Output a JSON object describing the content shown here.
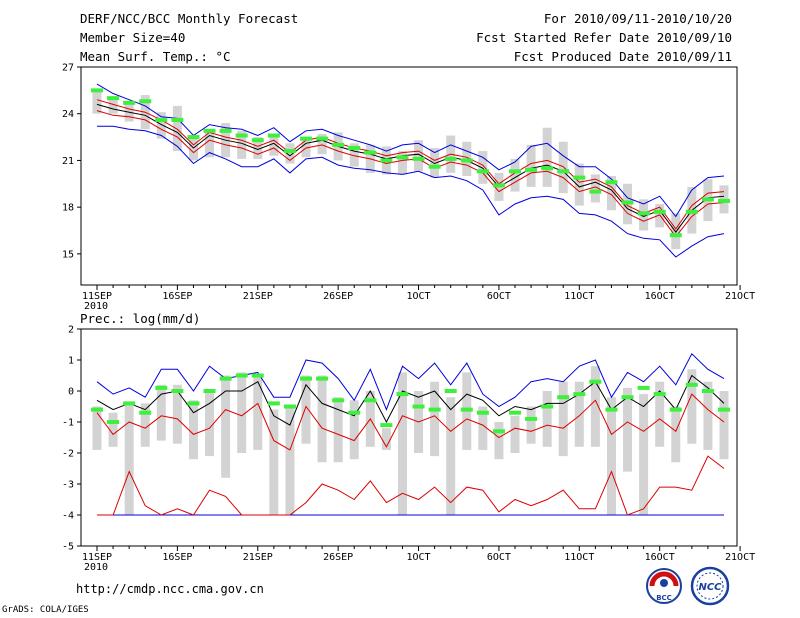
{
  "header": {
    "title": "DERF/NCC/BCC Monthly Forecast",
    "member_size": "Member Size=40",
    "variable": "Mean Surf. Temp.: °C",
    "period": "For 2010/09/11-2010/10/20",
    "started": "Fcst Started Refer Date 2010/09/10",
    "produced": "Fcst Produced Date 2010/09/11"
  },
  "footer": {
    "url": "http://cmdp.ncc.cma.gov.cn",
    "credit": "GrADS: COLA/IGES",
    "logo_left": "BCC",
    "logo_right": "NCC"
  },
  "colors": {
    "box": "#d3d3d3",
    "marker": "#3cf03c",
    "envelope": "#0000dd",
    "spread": "#dd0000",
    "mean": "#000000"
  },
  "chart_data": [
    {
      "type": "line",
      "title": "Mean Surf. Temp.: °C",
      "ylim": [
        13,
        27
      ],
      "yticks": [
        15,
        18,
        21,
        24,
        27
      ],
      "x": [
        "11SEP",
        "12SEP",
        "13SEP",
        "14SEP",
        "15SEP",
        "16SEP",
        "17SEP",
        "18SEP",
        "19SEP",
        "20SEP",
        "21SEP",
        "22SEP",
        "23SEP",
        "24SEP",
        "25SEP",
        "26SEP",
        "27SEP",
        "28SEP",
        "29SEP",
        "30SEP",
        "1OCT",
        "2OCT",
        "3OCT",
        "4OCT",
        "5OCT",
        "6OCT",
        "7OCT",
        "8OCT",
        "9OCT",
        "10OCT",
        "11OCT",
        "12OCT",
        "13OCT",
        "14OCT",
        "15OCT",
        "16OCT",
        "17OCT",
        "18OCT",
        "19OCT",
        "20OCT"
      ],
      "xtick_labels": [
        "11SEP",
        "16SEP",
        "21SEP",
        "26SEP",
        "1OCT",
        "6OCT",
        "11OCT",
        "16OCT",
        "21OCT"
      ],
      "xtick_sublabel": "2010",
      "series": [
        {
          "name": "ensemble max",
          "color": "blue",
          "values": [
            25.9,
            25.3,
            24.9,
            24.5,
            23.8,
            23.7,
            22.6,
            23.3,
            23.1,
            23.0,
            22.6,
            23.1,
            22.2,
            22.9,
            23.0,
            22.6,
            22.3,
            22.0,
            21.6,
            22.0,
            22.1,
            21.5,
            22.0,
            21.6,
            21.2,
            20.4,
            20.9,
            21.9,
            22.1,
            21.3,
            20.6,
            20.6,
            19.8,
            18.6,
            18.2,
            18.7,
            17.4,
            19.1,
            19.9,
            20.0
          ]
        },
        {
          "name": "upper spread",
          "color": "red",
          "values": [
            24.9,
            24.6,
            24.3,
            24.1,
            23.6,
            23.0,
            22.0,
            22.8,
            22.5,
            22.3,
            21.9,
            22.3,
            21.5,
            22.3,
            22.5,
            22.1,
            21.8,
            21.6,
            21.3,
            21.5,
            21.6,
            21.0,
            21.4,
            21.2,
            20.7,
            19.5,
            20.2,
            20.8,
            21.0,
            20.6,
            19.6,
            19.8,
            19.3,
            18.1,
            17.6,
            18.0,
            16.6,
            18.1,
            18.9,
            19.0
          ]
        },
        {
          "name": "ensemble mean",
          "color": "black",
          "values": [
            24.6,
            24.3,
            24.1,
            23.9,
            23.3,
            22.8,
            21.8,
            22.6,
            22.3,
            22.1,
            21.7,
            22.1,
            21.3,
            22.1,
            22.3,
            21.9,
            21.6,
            21.4,
            21.1,
            21.3,
            21.4,
            20.8,
            21.2,
            21.0,
            20.5,
            19.3,
            19.9,
            20.5,
            20.7,
            20.3,
            19.3,
            19.6,
            19.1,
            17.9,
            17.4,
            17.8,
            16.4,
            17.8,
            18.6,
            18.7
          ]
        },
        {
          "name": "lower spread",
          "color": "red",
          "values": [
            24.2,
            23.9,
            23.8,
            23.6,
            23.0,
            22.5,
            21.5,
            22.3,
            22.0,
            21.8,
            21.4,
            21.8,
            21.0,
            21.8,
            22.0,
            21.6,
            21.3,
            21.1,
            20.8,
            21.0,
            21.1,
            20.5,
            20.9,
            20.7,
            20.2,
            19.0,
            19.6,
            20.2,
            20.3,
            19.9,
            19.0,
            19.3,
            18.8,
            17.6,
            17.1,
            17.5,
            16.1,
            17.4,
            18.2,
            18.3
          ]
        },
        {
          "name": "ensemble min",
          "color": "blue",
          "values": [
            23.2,
            23.2,
            23.0,
            22.9,
            22.6,
            21.9,
            20.8,
            21.5,
            21.1,
            20.6,
            20.6,
            21.1,
            20.2,
            21.1,
            21.2,
            20.7,
            20.5,
            20.4,
            20.2,
            20.1,
            20.3,
            19.9,
            20.0,
            19.7,
            19.1,
            17.5,
            18.2,
            18.6,
            18.7,
            18.5,
            17.6,
            17.5,
            17.1,
            16.3,
            16.0,
            15.9,
            14.8,
            15.5,
            16.1,
            16.3
          ]
        },
        {
          "name": "box top",
          "color": "gray",
          "values": [
            25.6,
            25.0,
            24.6,
            25.2,
            24.1,
            24.5,
            22.6,
            23.0,
            23.4,
            22.9,
            22.5,
            22.7,
            22.1,
            22.4,
            22.7,
            22.8,
            22.1,
            22.0,
            21.9,
            21.6,
            22.3,
            21.8,
            22.6,
            22.2,
            21.6,
            20.2,
            21.1,
            22.0,
            23.1,
            22.2,
            20.8,
            20.1,
            20.0,
            19.5,
            18.5,
            18.2,
            17.6,
            19.3,
            19.8,
            19.4
          ]
        },
        {
          "name": "box bottom",
          "color": "gray",
          "values": [
            24.0,
            24.0,
            23.5,
            23.0,
            22.4,
            21.6,
            21.0,
            21.2,
            21.2,
            21.1,
            21.1,
            21.3,
            20.8,
            21.2,
            21.4,
            21.0,
            20.6,
            20.2,
            20.1,
            20.1,
            20.3,
            19.9,
            20.2,
            20.0,
            19.5,
            18.4,
            19.0,
            19.3,
            19.3,
            18.9,
            18.1,
            18.3,
            17.8,
            16.9,
            16.5,
            16.7,
            15.3,
            16.3,
            17.1,
            17.6
          ]
        },
        {
          "name": "green marker",
          "color": "green",
          "values": [
            25.5,
            25.0,
            24.7,
            24.8,
            23.6,
            23.6,
            22.5,
            22.9,
            22.9,
            22.6,
            22.3,
            22.6,
            21.6,
            22.4,
            22.4,
            22.0,
            21.8,
            21.5,
            21.0,
            21.2,
            21.1,
            20.6,
            21.1,
            21.0,
            20.3,
            19.4,
            20.3,
            20.4,
            20.5,
            20.3,
            19.9,
            19.0,
            19.6,
            18.3,
            17.6,
            17.7,
            16.2,
            17.7,
            18.5,
            18.4
          ]
        }
      ]
    },
    {
      "type": "line",
      "title": "Prec.: log(mm/d)",
      "ylim": [
        -5,
        2
      ],
      "yticks": [
        -5,
        -4,
        -3,
        -2,
        -1,
        0,
        1,
        2
      ],
      "x": [
        "11SEP",
        "12SEP",
        "13SEP",
        "14SEP",
        "15SEP",
        "16SEP",
        "17SEP",
        "18SEP",
        "19SEP",
        "20SEP",
        "21SEP",
        "22SEP",
        "23SEP",
        "24SEP",
        "25SEP",
        "26SEP",
        "27SEP",
        "28SEP",
        "29SEP",
        "30SEP",
        "1OCT",
        "2OCT",
        "3OCT",
        "4OCT",
        "5OCT",
        "6OCT",
        "7OCT",
        "8OCT",
        "9OCT",
        "10OCT",
        "11OCT",
        "12OCT",
        "13OCT",
        "14OCT",
        "15OCT",
        "16OCT",
        "17OCT",
        "18OCT",
        "19OCT",
        "20OCT"
      ],
      "xtick_labels": [
        "11SEP",
        "16SEP",
        "21SEP",
        "26SEP",
        "1OCT",
        "6OCT",
        "11OCT",
        "16OCT",
        "21OCT"
      ],
      "xtick_sublabel": "2010",
      "series": [
        {
          "name": "ensemble max",
          "color": "blue",
          "values": [
            0.3,
            -0.1,
            0.1,
            -0.2,
            0.7,
            0.7,
            0.0,
            0.8,
            0.4,
            0.5,
            0.6,
            -0.2,
            -0.2,
            1.0,
            0.9,
            0.4,
            -0.3,
            0.7,
            -0.6,
            0.8,
            0.4,
            0.9,
            0.2,
            0.9,
            -0.1,
            -0.5,
            -0.2,
            0.3,
            0.4,
            0.3,
            0.8,
            1.0,
            -0.2,
            0.6,
            0.3,
            0.8,
            0.2,
            1.2,
            0.7,
            0.4
          ]
        },
        {
          "name": "upper spread",
          "color": "red",
          "values": [
            -0.7,
            -1.4,
            -1.0,
            -1.2,
            -0.8,
            -0.9,
            -1.4,
            -1.2,
            -0.6,
            -0.8,
            -0.4,
            -1.6,
            -1.9,
            -0.5,
            -1.2,
            -1.4,
            -1.6,
            -0.9,
            -1.8,
            -0.8,
            -1.0,
            -0.8,
            -1.3,
            -0.9,
            -1.1,
            -1.5,
            -1.2,
            -1.3,
            -1.1,
            -1.2,
            -0.8,
            -0.3,
            -1.4,
            -1.0,
            -1.3,
            -0.9,
            -1.3,
            -0.1,
            -0.6,
            -1.0
          ]
        },
        {
          "name": "ensemble mean",
          "color": "black",
          "values": [
            -0.3,
            -0.6,
            -0.4,
            -0.6,
            -0.1,
            0.0,
            -0.7,
            -0.4,
            0.0,
            0.0,
            0.3,
            -0.8,
            -1.1,
            0.2,
            -0.4,
            -0.6,
            -0.8,
            0.0,
            -1.0,
            0.0,
            -0.2,
            0.0,
            -0.6,
            -0.1,
            -0.3,
            -0.8,
            -0.5,
            -0.6,
            -0.4,
            -0.4,
            -0.1,
            0.3,
            -0.6,
            -0.2,
            -0.5,
            0.0,
            -0.6,
            0.5,
            0.1,
            -0.4
          ]
        },
        {
          "name": "lower spread",
          "color": "red",
          "values": [
            -4.0,
            -4.0,
            -2.6,
            -3.7,
            -4.0,
            -3.8,
            -4.0,
            -3.2,
            -3.4,
            -4.0,
            -4.0,
            -4.0,
            -4.0,
            -3.6,
            -3.0,
            -3.2,
            -3.5,
            -2.9,
            -3.6,
            -3.3,
            -3.5,
            -3.1,
            -3.6,
            -3.1,
            -3.2,
            -3.9,
            -3.5,
            -3.7,
            -3.5,
            -3.2,
            -3.8,
            -3.8,
            -2.6,
            -4.0,
            -3.8,
            -3.1,
            -3.1,
            -3.2,
            -2.1,
            -2.5
          ]
        },
        {
          "name": "ensemble min",
          "color": "blue",
          "values": [
            -4.0,
            -4.0,
            -4.0,
            -4.0,
            -4.0,
            -4.0,
            -4.0,
            -4.0,
            -4.0,
            -4.0,
            -4.0,
            -4.0,
            -4.0,
            -4.0,
            -4.0,
            -4.0,
            -4.0,
            -4.0,
            -4.0,
            -4.0,
            -4.0,
            -4.0,
            -4.0,
            -4.0,
            -4.0,
            -4.0,
            -4.0,
            -4.0,
            -4.0,
            -4.0,
            -4.0,
            -4.0,
            -4.0,
            -4.0,
            -4.0,
            -4.0,
            -4.0,
            -4.0,
            -4.0,
            -4.0
          ]
        },
        {
          "name": "box top",
          "color": "gray",
          "values": [
            -0.5,
            -0.7,
            -0.4,
            -0.4,
            0.2,
            0.2,
            -0.3,
            0.0,
            0.5,
            0.6,
            0.5,
            -0.6,
            -0.5,
            0.5,
            0.5,
            -0.2,
            -0.3,
            0.0,
            -1.2,
            0.6,
            0.0,
            0.3,
            -0.2,
            0.6,
            -0.5,
            -1.0,
            -0.8,
            -0.5,
            0.0,
            0.3,
            0.3,
            0.8,
            -0.2,
            0.1,
            -0.1,
            0.3,
            -0.5,
            0.7,
            0.3,
            0.0
          ]
        },
        {
          "name": "box bottom",
          "color": "gray",
          "values": [
            -1.9,
            -1.8,
            -4.0,
            -1.8,
            -1.6,
            -1.7,
            -2.2,
            -2.1,
            -2.8,
            -2.0,
            -1.9,
            -4.0,
            -4.0,
            -1.7,
            -2.3,
            -2.3,
            -2.2,
            -1.8,
            -1.9,
            -4.0,
            -2.0,
            -2.1,
            -4.0,
            -1.9,
            -1.9,
            -2.2,
            -2.0,
            -1.7,
            -1.8,
            -2.1,
            -1.8,
            -1.8,
            -4.0,
            -2.6,
            -4.0,
            -1.8,
            -2.3,
            -1.7,
            -1.9,
            -2.2
          ]
        },
        {
          "name": "green marker",
          "color": "green",
          "values": [
            -0.6,
            -1.0,
            -0.4,
            -0.7,
            0.1,
            0.0,
            -0.4,
            0.0,
            0.4,
            0.5,
            0.5,
            -0.4,
            -0.5,
            0.4,
            0.4,
            -0.3,
            -0.7,
            -0.3,
            -1.1,
            -0.1,
            -0.5,
            -0.6,
            0.0,
            -0.6,
            -0.7,
            -1.3,
            -0.7,
            -0.9,
            -0.5,
            -0.2,
            -0.1,
            0.3,
            -0.6,
            -0.2,
            0.1,
            -0.1,
            -0.6,
            0.2,
            0.0,
            -0.6
          ]
        }
      ]
    }
  ]
}
